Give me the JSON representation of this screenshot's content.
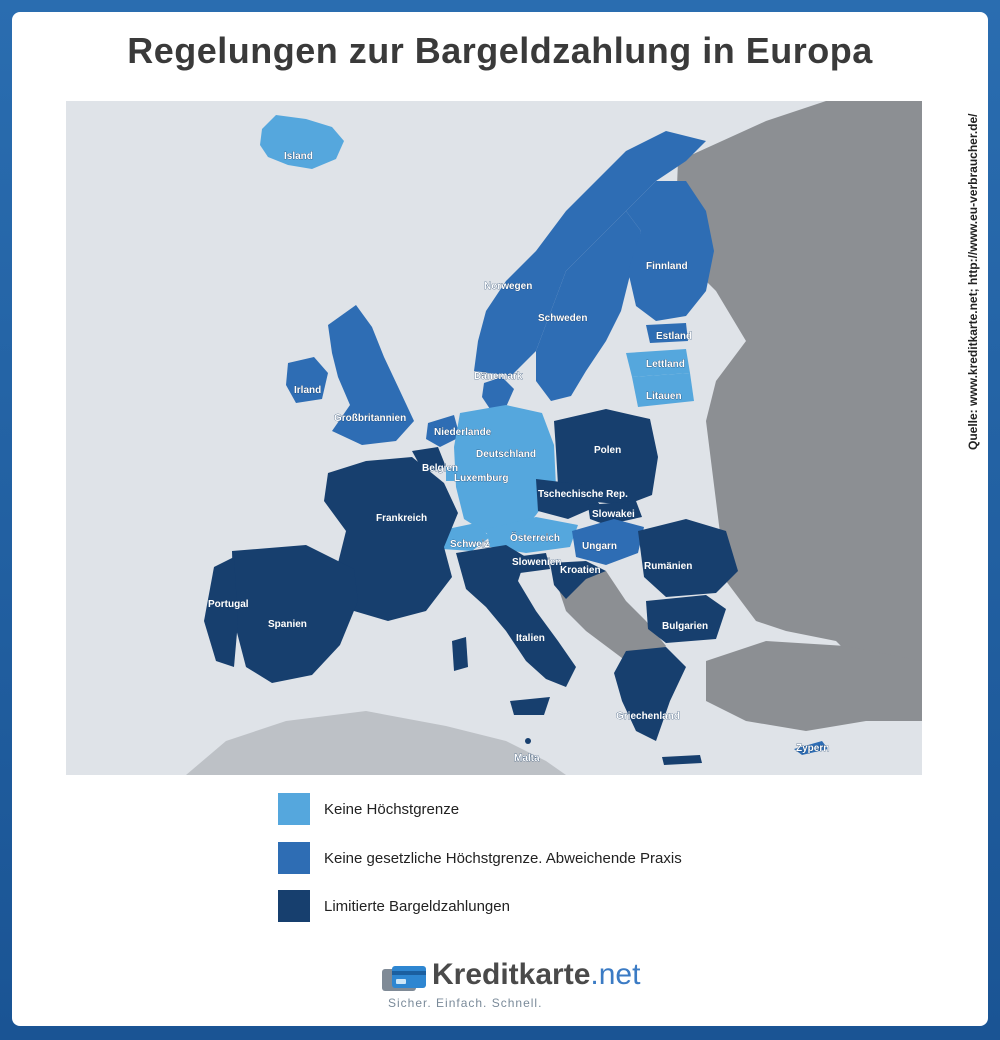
{
  "title": "Regelungen zur Bargeldzahlung in Europa",
  "source": "Quelle: www.kreditkarte.net; http://www.eu-verbraucher.de/",
  "colors": {
    "sea": "#dfe3e8",
    "non_eu": "#8c8f93",
    "no_limit": "#55a7dd",
    "no_legal_limit": "#2e6db4",
    "limited": "#173f6e",
    "frame": "#1f5fa0"
  },
  "legend": [
    {
      "label": "Keine Höchstgrenze",
      "color": "#55a7dd"
    },
    {
      "label": "Keine gesetzliche Höchstgrenze. Abweichende Praxis",
      "color": "#2e6db4"
    },
    {
      "label": "Limitierte Bargeldzahlungen",
      "color": "#173f6e"
    }
  ],
  "countries": {
    "island": "Island",
    "norwegen": "Norwegen",
    "schweden": "Schweden",
    "finnland": "Finnland",
    "estland": "Estland",
    "lettland": "Lettland",
    "litauen": "Litauen",
    "daenemark": "Dänemark",
    "irland": "Irland",
    "grossbritannien": "Großbritannien",
    "niederlande": "Niederlande",
    "deutschland": "Deutschland",
    "polen": "Polen",
    "belgien": "Belgien",
    "luxemburg": "Luxemburg",
    "tschechien": "Tschechische Rep.",
    "slowakei": "Slowakei",
    "frankreich": "Frankreich",
    "schweiz": "Schweiz",
    "oesterreich": "Österreich",
    "ungarn": "Ungarn",
    "slowenien": "Slowenien",
    "kroatien": "Kroatien",
    "rumaenien": "Rumänien",
    "portugal": "Portugal",
    "spanien": "Spanien",
    "italien": "Italien",
    "bulgarien": "Bulgarien",
    "griechenland": "Griechenland",
    "malta": "Malta",
    "zypern": "Zypern"
  },
  "categories": {
    "no_limit": [
      "Island",
      "Lettland",
      "Litauen",
      "Deutschland",
      "Luxemburg",
      "Schweiz",
      "Österreich"
    ],
    "no_legal_limit": [
      "Norwegen",
      "Schweden",
      "Finnland",
      "Estland",
      "Dänemark",
      "Irland",
      "Großbritannien",
      "Niederlande",
      "Ungarn",
      "Zypern"
    ],
    "limited": [
      "Polen",
      "Belgien",
      "Tschechische Rep.",
      "Slowakei",
      "Frankreich",
      "Slowenien",
      "Kroatien",
      "Rumänien",
      "Portugal",
      "Spanien",
      "Italien",
      "Bulgarien",
      "Griechenland",
      "Malta"
    ]
  },
  "logo": {
    "brand": "Kreditkarte",
    "tld": ".net",
    "tagline": "Sicher. Einfach. Schnell."
  }
}
